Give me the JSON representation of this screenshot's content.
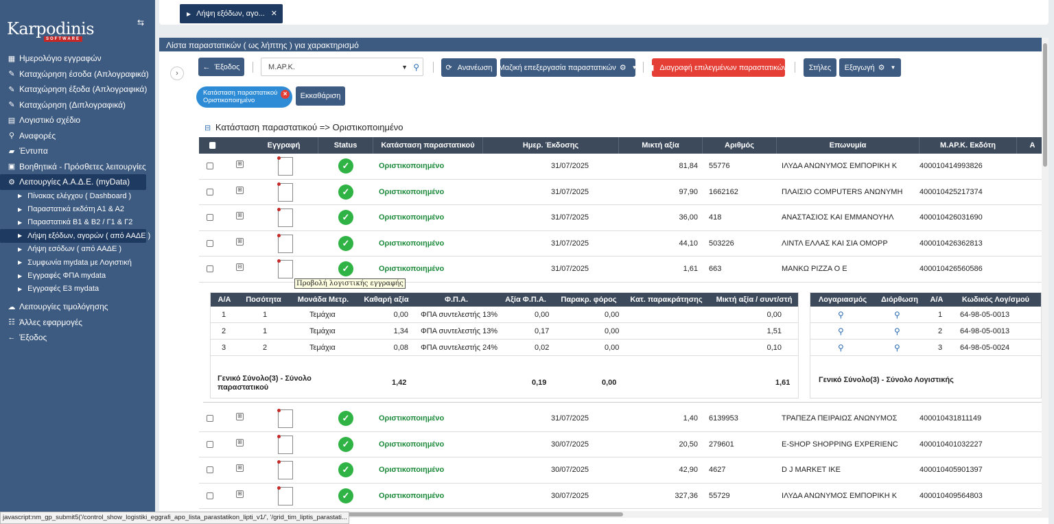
{
  "sidebar": {
    "logo_main": "Karpodinis",
    "logo_sub": "SOFTWARE",
    "items": [
      {
        "icon": "calendar-icon",
        "glyph": "▦",
        "label": "Ημερολόγιο εγγραφών"
      },
      {
        "icon": "pencil-icon",
        "glyph": "✎",
        "label": "Καταχώρηση έσοδα (Απλογραφικά)"
      },
      {
        "icon": "pencil-icon",
        "glyph": "✎",
        "label": "Καταχώρηση έξοδα (Απλογραφικά)"
      },
      {
        "icon": "pencil-icon",
        "glyph": "✎",
        "label": "Καταχώρηση (Διπλογραφικά)"
      },
      {
        "icon": "book-icon",
        "glyph": "▤",
        "label": "Λογιστικό σχέδιο"
      },
      {
        "icon": "search-icon",
        "glyph": "⚲",
        "label": "Αναφορές"
      },
      {
        "icon": "folder-open-icon",
        "glyph": "▰",
        "label": "Έντυπα"
      },
      {
        "icon": "folder-plus-icon",
        "glyph": "▣",
        "label": "Βοηθητικά - Πρόσθετες λειτουργίες"
      },
      {
        "icon": "gears-icon",
        "glyph": "⚙",
        "label": "Λειτουργίες Α.Α.Δ.Ε. (myData)"
      }
    ],
    "sub_items": [
      "Πίνακας ελέγχου ( Dashboard )",
      "Παραστατικά εκδότη Α1 & Α2",
      "Παραστατικά Β1 & Β2 / Γ1 & Γ2",
      "Λήψη εξόδων, αγορών ( από ΑΑΔΕ )",
      "Λήψη εσόδων ( από ΑΑΔΕ )",
      "Συμφωνία mydata με Λογιστική",
      "Εγγραφές ΦΠΑ mydata",
      "Εγγραφές Ε3 mydata"
    ],
    "bottom_items": [
      {
        "icon": "cloud-upload-icon",
        "glyph": "☁",
        "label": "Λειτουργίες τιμολόγησης"
      },
      {
        "icon": "apps-icon",
        "glyph": "☷",
        "label": "Άλλες εφαρμογές"
      },
      {
        "icon": "arrow-left-icon",
        "glyph": "←",
        "label": "Έξοδος"
      }
    ]
  },
  "topbar": {
    "tab_label": "Λήψη εξόδων, αγο..."
  },
  "panel": {
    "title": "Λίστα παραστατικών ( ως λήπτης ) για χαρακτηρισμό",
    "exit_label": "Έξοδος",
    "search_value": "Μ.ΑΡ.Κ.",
    "refresh_label": "Ανανέωση",
    "bulk_label": "Μαζική επεξεργασία παραστατικών",
    "delete_label": "Διαγραφή επιλεγμένων παραστατικών",
    "columns_label": "Στήλες",
    "export_label": "Εξαγωγή",
    "filter_chip_line1": "Κατάσταση παραστατικού",
    "filter_chip_line2": "Οριστικοποιημένο",
    "clear_label": "Εκκαθάριση",
    "group_title": "Κατάσταση παραστατικού => Οριστικοποιημένο"
  },
  "grid": {
    "headers": [
      "",
      "",
      "Εγγραφή",
      "Status",
      "Κατάσταση παραστατικού",
      "Ημερ. Έκδοσης",
      "Μικτή αξία",
      "Αριθμός",
      "Επωνυμία",
      "Μ.ΑΡ.Κ. Εκδότη",
      "Α"
    ],
    "rows_top": [
      {
        "status": "Οριστικοποιημένο",
        "date": "31/07/2025",
        "amount": "81,84",
        "number": "55776",
        "name": "ΙΛΥΔΑ ΑΝΩΝΥΜΟΣ ΕΜΠΟΡΙΚΗ Κ",
        "mark": "400010414993826"
      },
      {
        "status": "Οριστικοποιημένο",
        "date": "31/07/2025",
        "amount": "97,90",
        "number": "1662162",
        "name": "ΠΛΑΙΣΙΟ COMPUTERS ΑΝΩΝΥΜΗ",
        "mark": "400010425217374"
      },
      {
        "status": "Οριστικοποιημένο",
        "date": "31/07/2025",
        "amount": "36,00",
        "number": "418",
        "name": "ΑΝΑΣΤΑΣΙΟΣ ΚΑΙ ΕΜΜΑΝΟΥΗΛ",
        "mark": "400010426031690"
      },
      {
        "status": "Οριστικοποιημένο",
        "date": "31/07/2025",
        "amount": "44,10",
        "number": "503226",
        "name": "ΛΙΝΤΛ ΕΛΛΑΣ ΚΑΙ ΣΙΑ ΟΜΟΡΡ",
        "mark": "400010426362813"
      },
      {
        "status": "Οριστικοποιημένο",
        "date": "31/07/2025",
        "amount": "1,61",
        "number": "663",
        "name": "ΜΑΝΚΩ PIZZA Ο Ε",
        "mark": "400010426560586"
      }
    ],
    "rows_bottom": [
      {
        "status": "Οριστικοποιημένο",
        "date": "31/07/2025",
        "amount": "1,40",
        "number": "6139953",
        "name": "ΤΡΑΠΕΖΑ ΠΕΙΡΑΙΩΣ ΑΝΩΝΥΜΟΣ",
        "mark": "400010431811149"
      },
      {
        "status": "Οριστικοποιημένο",
        "date": "30/07/2025",
        "amount": "20,50",
        "number": "279601",
        "name": "E-SHOP SHOPPING EXPERIENC",
        "mark": "400010401032227"
      },
      {
        "status": "Οριστικοποιημένο",
        "date": "30/07/2025",
        "amount": "42,90",
        "number": "4627",
        "name": "D J MARKET IKE",
        "mark": "400010405901397"
      },
      {
        "status": "Οριστικοποιημένο",
        "date": "30/07/2025",
        "amount": "327,36",
        "number": "55729",
        "name": "ΙΛΥΔΑ ΑΝΩΝΥΜΟΣ ΕΜΠΟΡΙΚΗ Κ",
        "mark": "400010409564803"
      }
    ],
    "tooltip": "Προβολή λογιστικής εγγραφής"
  },
  "detail": {
    "headers": [
      "Α/Α",
      "Ποσότητα",
      "Μονάδα Μετρ.",
      "Καθαρή αξία",
      "Φ.Π.Α.",
      "Αξία Φ.Π.Α.",
      "Παρακρ. φόρος",
      "Κατ. παρακράτησης",
      "Μικτή αξία / συντ/στή"
    ],
    "rows": [
      {
        "aa": "1",
        "qty": "1",
        "unit": "Τεμάχια",
        "net": "0,00",
        "vat": "ΦΠΑ συντελεστής 13%",
        "vat_amt": "0,00",
        "wh": "0,00",
        "gross": "0,00"
      },
      {
        "aa": "2",
        "qty": "1",
        "unit": "Τεμάχια",
        "net": "1,34",
        "vat": "ΦΠΑ συντελεστής 13%",
        "vat_amt": "0,17",
        "wh": "0,00",
        "gross": "1,51"
      },
      {
        "aa": "3",
        "qty": "2",
        "unit": "Τεμάχια",
        "net": "0,08",
        "vat": "ΦΠΑ συντελεστής 24%",
        "vat_amt": "0,02",
        "wh": "0,00",
        "gross": "0,10"
      }
    ],
    "total_label_1": "Γενικό Σύνολο(3) - Σύνολο",
    "total_label_2": "παραστατικού",
    "total_net": "1,42",
    "total_vat": "0,19",
    "total_wh": "0,00",
    "total_gross": "1,61",
    "acct_headers": [
      "Λογαριασμός",
      "Διόρθωση",
      "Α/Α",
      "Κωδικός Λογ/σμού"
    ],
    "acct_rows": [
      {
        "aa": "1",
        "code": "64-98-05-0013"
      },
      {
        "aa": "2",
        "code": "64-98-05-0013"
      },
      {
        "aa": "3",
        "code": "64-98-05-0024"
      }
    ],
    "acct_total": "Γενικό Σύνολο(3) - Σύνολο Λογιστικής"
  },
  "statusbar": "javascript:nm_gp_submit5('/control_show_logistiki_eggrafi_apo_lista_parastatikon_lipti_v1/', '/grid_tim_liptis_parastati..."
}
